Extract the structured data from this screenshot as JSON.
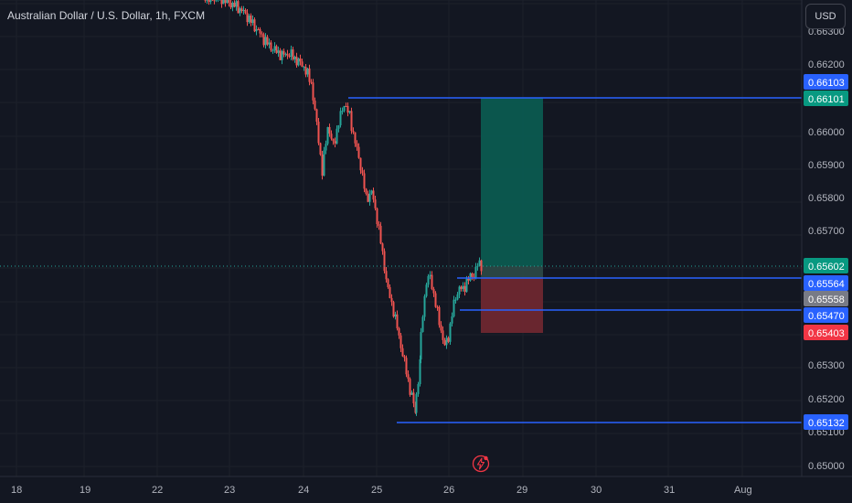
{
  "header": {
    "symbol_title": "Australian Dollar / U.S. Dollar, 1h, FXCM"
  },
  "currency_button": {
    "label": "USD"
  },
  "price_axis": {
    "ticks": [
      "0.66300",
      "0.66200",
      "0.66000",
      "0.65900",
      "0.65800",
      "0.65700",
      "0.65300",
      "0.65200",
      "0.65100",
      "0.65000"
    ],
    "labels": [
      {
        "name": "upper-line-label",
        "text": "0.66103",
        "color": "#2962ff"
      },
      {
        "name": "take-profit-label",
        "text": "0.66101",
        "color": "#089981"
      },
      {
        "name": "last-price-label",
        "text": "0.65602",
        "color": "#089981"
      },
      {
        "name": "entry-line-label",
        "text": "0.65564",
        "color": "#2962ff"
      },
      {
        "name": "crosshair-price-label",
        "text": "0.65558",
        "color": "#787b86"
      },
      {
        "name": "lower-line-label",
        "text": "0.65470",
        "color": "#2962ff"
      },
      {
        "name": "stop-loss-label",
        "text": "0.65403",
        "color": "#f23645"
      },
      {
        "name": "low-line-label",
        "text": "0.65132",
        "color": "#2962ff"
      }
    ]
  },
  "time_axis": {
    "ticks": [
      "18",
      "19",
      "22",
      "23",
      "24",
      "25",
      "26",
      "29",
      "30",
      "31",
      "Aug"
    ]
  },
  "colors": {
    "up": "#26a69a",
    "down": "#ef5350",
    "line": "#2962ff",
    "profit_zone": "#0b5a50",
    "loss_zone": "#6e2730",
    "background": "#131722"
  },
  "icons": {
    "alert": "lightning-bolt-icon"
  }
}
